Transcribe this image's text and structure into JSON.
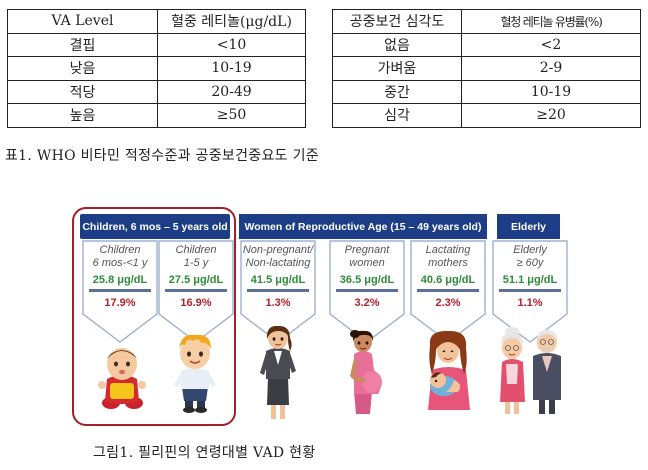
{
  "table1": {
    "headers": [
      "VA Level",
      "혈중 레티놀(μg/dL)"
    ],
    "rows": [
      [
        "결핍",
        "<10"
      ],
      [
        "낮음",
        "10-19"
      ],
      [
        "적당",
        "20-49"
      ],
      [
        "높음",
        "≥50"
      ]
    ]
  },
  "table2": {
    "headers": [
      "공중보건 심각도",
      "혈청 레티놀 유병률(%)"
    ],
    "rows": [
      [
        "없음",
        "<2"
      ],
      [
        "가벼움",
        "2-9"
      ],
      [
        "중간",
        "10-19"
      ],
      [
        "심각",
        "≥20"
      ]
    ]
  },
  "caption1": "표1. WHO 비타민 적정수준과 공중보건중요도 기준",
  "figure": {
    "groups": {
      "children": "Children, 6 mos – 5 years old",
      "women": "Women of Reproductive Age (15 – 49 years old)",
      "elderly": "Elderly"
    },
    "cards": [
      {
        "label": [
          "Children",
          "6 mos-<1 y"
        ],
        "value": "25.8 μg/dL",
        "percent": "17.9%"
      },
      {
        "label": [
          "Children",
          "1-5 y"
        ],
        "value": "27.5 μg/dL",
        "percent": "16.9%"
      },
      {
        "label": [
          "Non-pregnant/",
          "Non-lactating"
        ],
        "value": "41.5 μg/dL",
        "percent": "1.3%"
      },
      {
        "label": [
          "Pregnant",
          "women"
        ],
        "value": "36.5 μg/dL",
        "percent": "3.2%"
      },
      {
        "label": [
          "Lactating",
          "mothers"
        ],
        "value": "40.6 μg/dL",
        "percent": "2.3%"
      },
      {
        "label": [
          "Elderly",
          "≥ 60y"
        ],
        "value": "51.1 μg/dL",
        "percent": "1.1%"
      }
    ],
    "colors": {
      "header_blue": "#1d3e86",
      "frame_red": "#a11f2e",
      "value_green": "#2e8b3a",
      "percent_red": "#b3202e"
    },
    "people_icons": [
      "baby-icon",
      "boy-icon",
      "woman-icon",
      "pregnant-woman-icon",
      "mother-with-baby-icon",
      "elderly-couple-icon"
    ]
  },
  "caption2": "그림1. 필리핀의 연령대별 VAD 현황"
}
